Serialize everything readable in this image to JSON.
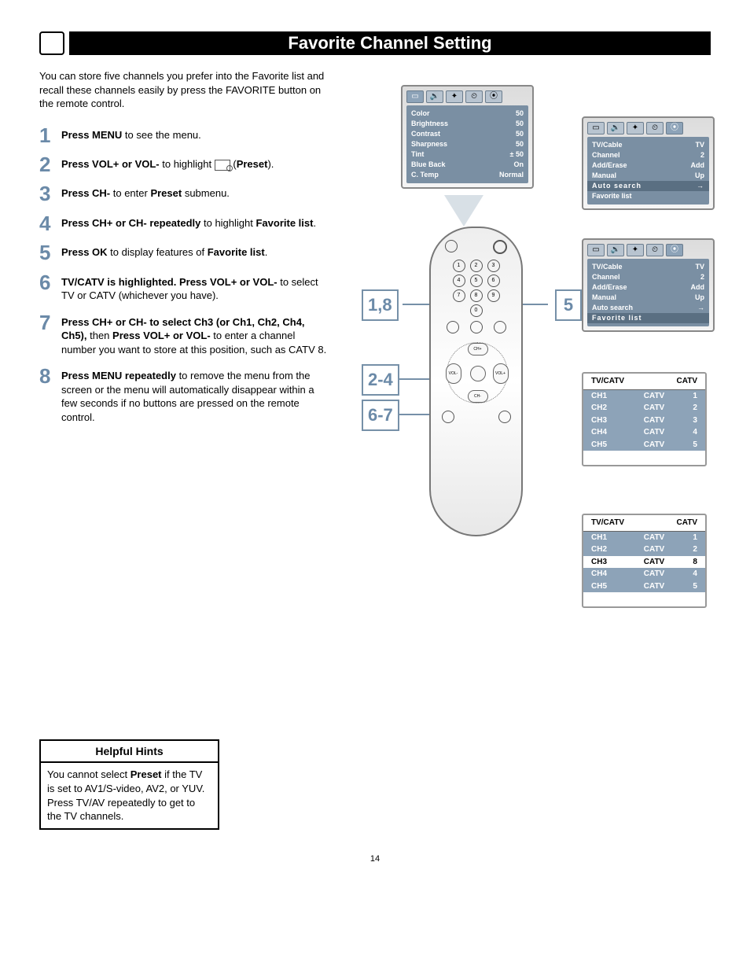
{
  "title": "Favorite Channel Setting",
  "intro": "You can store five channels you prefer into the Favorite list and recall these channels easily by press the FAVORITE button on the remote control.",
  "steps": [
    {
      "n": "1",
      "b1": "Press MENU",
      "t1": " to see the menu."
    },
    {
      "n": "2",
      "b1": "Press VOL+ or VOL-",
      "t1": " to highlight ",
      "t2": "(",
      "b2": "Preset",
      "t3": ")."
    },
    {
      "n": "3",
      "b1": "Press CH-",
      "t1": " to enter ",
      "b2": "Preset",
      "t2": " submenu."
    },
    {
      "n": "4",
      "b1": "Press CH+ or CH- repeatedly",
      "t1": " to highlight ",
      "b2": "Favorite list",
      "t2": "."
    },
    {
      "n": "5",
      "b1": "Press OK",
      "t1": " to display features of ",
      "b2": "Favorite list",
      "t2": "."
    },
    {
      "n": "6",
      "b1": "TV/CATV is highlighted. Press VOL+ or VOL-",
      "t1": " to select TV or CATV (whichever you have)."
    },
    {
      "n": "7",
      "b1": "Press CH+ or CH- to select Ch3 (or Ch1, Ch2, Ch4, Ch5),",
      "t1": " then ",
      "b2": "Press VOL+ or VOL-",
      "t2": " to enter a channel number you want to store at this position, such as CATV 8."
    },
    {
      "n": "8",
      "b1": "Press MENU repeatedly",
      "t1": " to remove the menu from the screen or the menu will automatically disappear within a few seconds if no buttons are pressed on the remote control."
    }
  ],
  "hints_title": "Helpful Hints",
  "hints_body1": "You cannot select ",
  "hints_bold": "Preset",
  "hints_body2": " if the TV is set to AV1/S-video, AV2, or YUV. Press TV/AV repeatedly to get to the TV channels.",
  "osd1": {
    "rows": [
      [
        "Color",
        "50"
      ],
      [
        "Brightness",
        "50"
      ],
      [
        "Contrast",
        "50"
      ],
      [
        "Sharpness",
        "50"
      ],
      [
        "Tint",
        "± 50"
      ],
      [
        "Blue Back",
        "On"
      ],
      [
        "C. Temp",
        "Normal"
      ]
    ]
  },
  "osd_preset": {
    "rows": [
      [
        "TV/Cable",
        "TV"
      ],
      [
        "Channel",
        "2"
      ],
      [
        "Add/Erase",
        "Add"
      ],
      [
        "Manual",
        "Up"
      ],
      [
        "Auto search",
        "→"
      ],
      [
        "Favorite list",
        ""
      ]
    ],
    "highlight_a": 4,
    "highlight_b": 5
  },
  "fav_table_head": [
    "TV/CATV",
    "CATV"
  ],
  "fav_table1": [
    [
      "CH1",
      "CATV",
      "1"
    ],
    [
      "CH2",
      "CATV",
      "2"
    ],
    [
      "CH3",
      "CATV",
      "3"
    ],
    [
      "CH4",
      "CATV",
      "4"
    ],
    [
      "CH5",
      "CATV",
      "5"
    ]
  ],
  "fav_table2": [
    [
      "CH1",
      "CATV",
      "1"
    ],
    [
      "CH2",
      "CATV",
      "2"
    ],
    [
      "CH3",
      "CATV",
      "8"
    ],
    [
      "CH4",
      "CATV",
      "4"
    ],
    [
      "CH5",
      "CATV",
      "5"
    ]
  ],
  "fav2_normal_idx": 2,
  "keypad": [
    [
      "1",
      "2",
      "3"
    ],
    [
      "4",
      "5",
      "6"
    ],
    [
      "7",
      "8",
      "9"
    ],
    [
      "",
      "0",
      ""
    ]
  ],
  "callouts": {
    "c18": "1,8",
    "c5": "5",
    "c24": "2-4",
    "c67": "6-7"
  },
  "page": "14",
  "colors": {
    "accent": "#6b8aa8",
    "osd_bg": "#7a8fa3"
  }
}
